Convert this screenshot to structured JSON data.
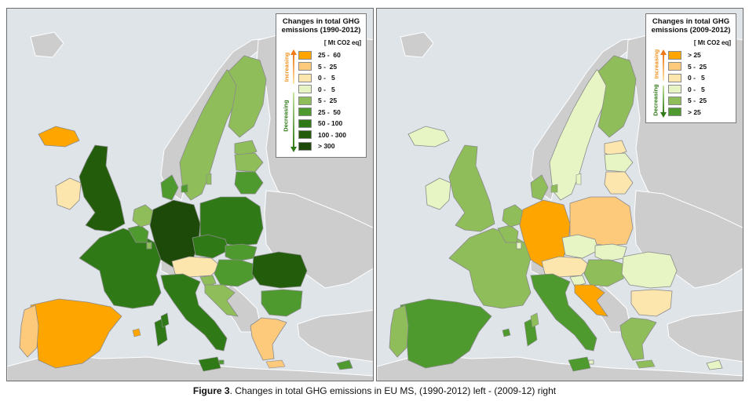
{
  "caption": {
    "label": "Figure 3",
    "text": ". Changes in total GHG emissions in EU MS, (1990-2012) left - (2009-12) right"
  },
  "colors": {
    "sea": "#dfe4e9",
    "nonEU": "#cdcdcd",
    "border": "#8a8a8a"
  },
  "maps": {
    "left": {
      "legend": {
        "title_line1": "Changes in total GHG",
        "title_line2": "emissions (1990-2012)",
        "unit": "[ Mt CO2 eq]",
        "increasing_label": "Increasing",
        "decreasing_label": "Decreasing",
        "items": [
          {
            "range": "25 -  60",
            "color": "#ffa500"
          },
          {
            "range": "5 -  25",
            "color": "#fdc97b"
          },
          {
            "range": "0 -   5",
            "color": "#fde6ad"
          },
          {
            "range": "0 -   5",
            "color": "#e6f5c3"
          },
          {
            "range": "5 -  25",
            "color": "#8fbd5a"
          },
          {
            "range": "25 -  50",
            "color": "#4e9a2e"
          },
          {
            "range": "50 - 100",
            "color": "#2f7a16"
          },
          {
            "range": "100 - 300",
            "color": "#235d0c"
          },
          {
            "range": "> 300",
            "color": "#1d4a09"
          }
        ]
      },
      "countries": {
        "IS": 0,
        "IE": 2,
        "UK": 7,
        "FR": 6,
        "ES": 0,
        "PT": 1,
        "BE": 5,
        "NL": 4,
        "LU": 4,
        "DE": 8,
        "DK": 5,
        "SE": 4,
        "FI": 4,
        "PL": 6,
        "CZ": 6,
        "SK": 5,
        "AT": 2,
        "SI": 4,
        "HU": 5,
        "HR": 4,
        "IT": 6,
        "RO": 7,
        "BG": 5,
        "GR": 1,
        "EE": 4,
        "LV": 4,
        "LT": 5,
        "MT": 5,
        "CY": 5
      }
    },
    "right": {
      "legend": {
        "title_line1": "Changes in total GHG",
        "title_line2": "emissions (2009-2012)",
        "unit": "[ Mt CO2 eq]",
        "increasing_label": "Increasing",
        "decreasing_label": "Decreasing",
        "items": [
          {
            "range": "> 25",
            "color": "#ffa500"
          },
          {
            "range": "5 -  25",
            "color": "#fdc97b"
          },
          {
            "range": "0 -   5",
            "color": "#fde6ad"
          },
          {
            "range": "0 -   5",
            "color": "#e6f5c3"
          },
          {
            "range": "5 -  25",
            "color": "#8fbd5a"
          },
          {
            "range": "> 25",
            "color": "#4e9a2e"
          }
        ]
      },
      "countries": {
        "IS": 3,
        "IE": 3,
        "UK": 4,
        "FR": 4,
        "ES": 5,
        "PT": 4,
        "BE": 4,
        "NL": 4,
        "LU": 3,
        "DE": 0,
        "DK": 4,
        "SE": 3,
        "FI": 4,
        "PL": 1,
        "CZ": 3,
        "SK": 3,
        "AT": 2,
        "SI": 3,
        "HU": 4,
        "HR": 0,
        "IT": 5,
        "RO": 3,
        "BG": 2,
        "GR": 4,
        "EE": 2,
        "LV": 3,
        "LT": 2,
        "MT": 3,
        "CY": 3
      }
    }
  }
}
